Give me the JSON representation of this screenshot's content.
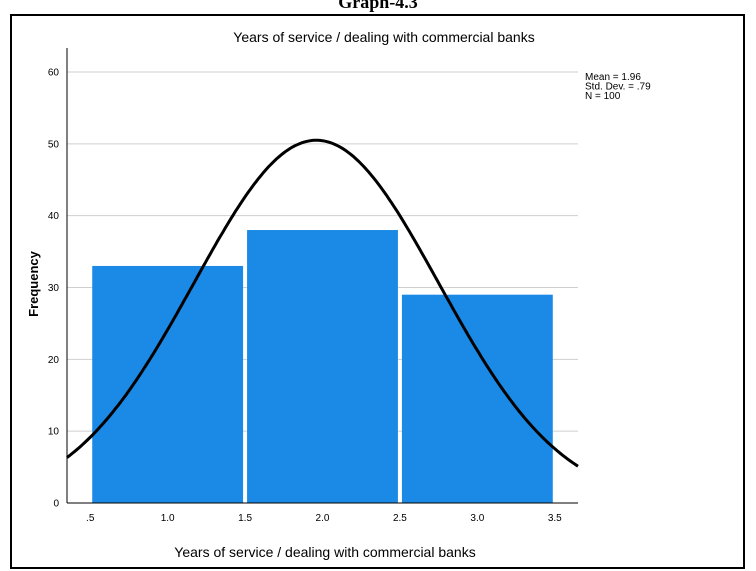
{
  "page": {
    "heading": "Graph-4.3"
  },
  "chart_data": {
    "type": "bar",
    "title": "Years of service / dealing with commercial banks",
    "xlabel": "Years of service / dealing with commercial banks",
    "ylabel": "Frequency",
    "xlim": [
      0.35,
      3.65
    ],
    "ylim": [
      0,
      60
    ],
    "grid": true,
    "x_ticks": [
      ".5",
      "1.0",
      "1.5",
      "2.0",
      "2.5",
      "3.0",
      "3.5"
    ],
    "y_ticks": [
      "0",
      "10",
      "20",
      "30",
      "40",
      "50",
      "60"
    ],
    "bins": [
      {
        "start": 0.5,
        "end": 1.5,
        "value": 33
      },
      {
        "start": 1.5,
        "end": 2.5,
        "value": 38
      },
      {
        "start": 2.5,
        "end": 3.5,
        "value": 29
      }
    ],
    "normal_curve": {
      "mean": 1.96,
      "std_dev": 0.79,
      "n": 100,
      "bin_width": 1
    },
    "stats": [
      "Mean = 1.96",
      "Std. Dev. = .79",
      "N = 100"
    ],
    "colors": {
      "bar": "#1a8ae6",
      "curve": "#000000",
      "grid": "#cfcfcf"
    }
  }
}
